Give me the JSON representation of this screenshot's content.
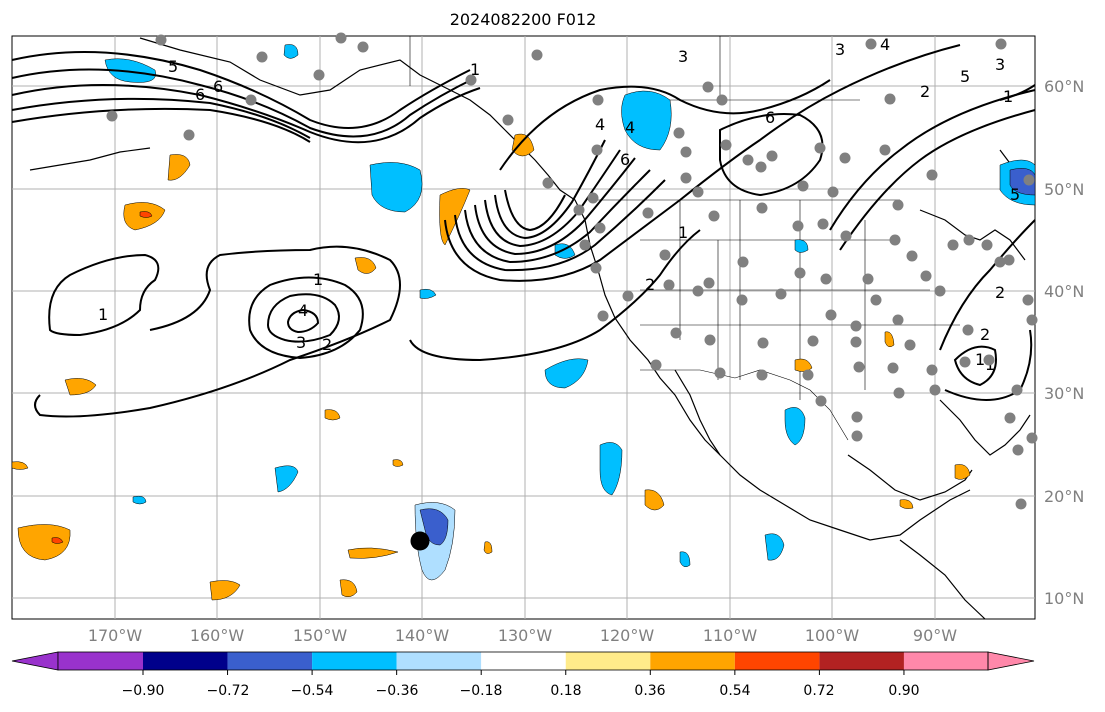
{
  "title": "2024082200 F012",
  "map": {
    "lat_labels": [
      "60°N",
      "50°N",
      "40°N",
      "30°N",
      "20°N",
      "10°N"
    ],
    "lon_labels": [
      "170°W",
      "160°W",
      "150°W",
      "140°W",
      "130°W",
      "120°W",
      "110°W",
      "100°W",
      "90°W"
    ],
    "contour_labels": [
      "1",
      "2",
      "3",
      "4",
      "5",
      "6",
      "1",
      "2",
      "3",
      "4",
      "1",
      "1",
      "2",
      "3",
      "4",
      "5",
      "6",
      "6",
      "1",
      "2",
      "3",
      "4",
      "5",
      "6",
      "1",
      "2",
      "1"
    ],
    "colors": {
      "land_outline": "#000000",
      "grid": "#b0b0b0",
      "station": "#808080",
      "contour": "#000000"
    }
  },
  "colorbar": {
    "ticks": [
      "−0.90",
      "−0.72",
      "−0.54",
      "−0.36",
      "−0.18",
      "0.18",
      "0.36",
      "0.54",
      "0.72",
      "0.90"
    ],
    "colors": [
      "#9932cc",
      "#00008b",
      "#3a5fcd",
      "#00bfff",
      "#afdfff",
      "#ffffff",
      "#ffeb8a",
      "#ffa500",
      "#ff4500",
      "#b22222",
      "#ff88aa"
    ]
  }
}
